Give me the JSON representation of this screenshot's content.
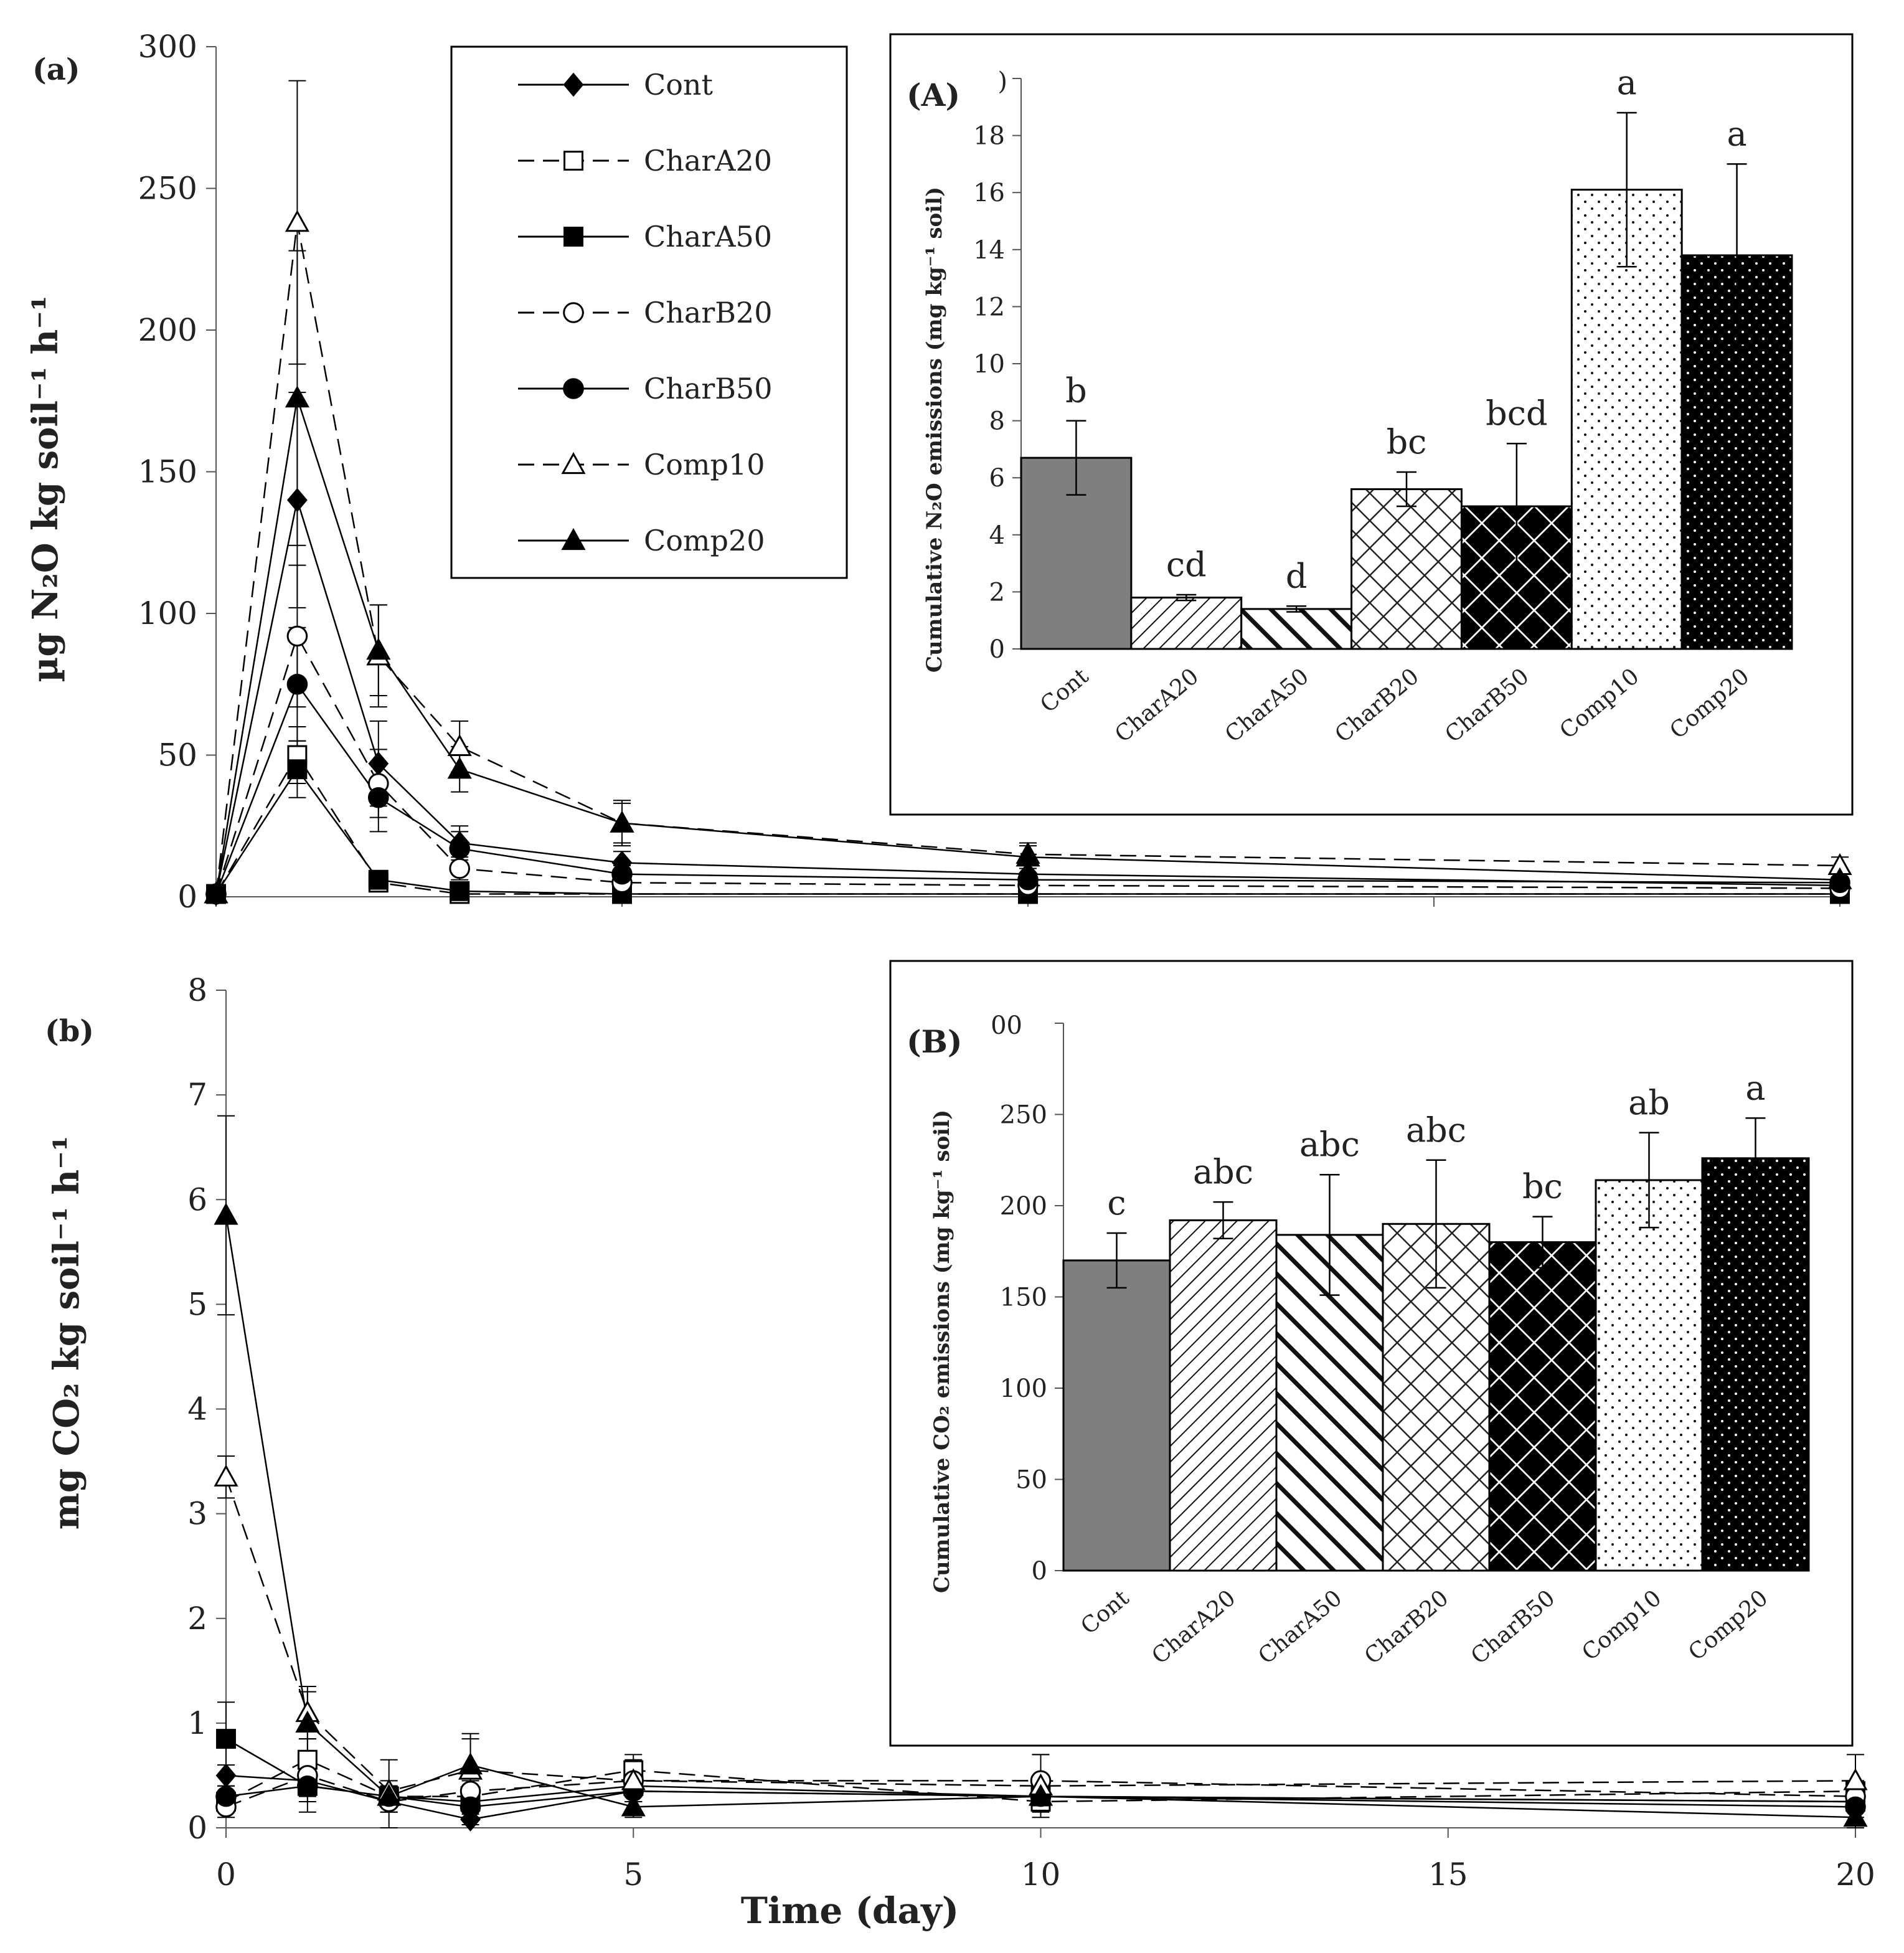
{
  "figure": {
    "x_axis_label": "Time (day)"
  },
  "chart_data": [
    {
      "id": "a",
      "type": "line",
      "panel_label": "(a)",
      "ylabel": "µg N₂O kg soil⁻¹ h⁻¹",
      "xlabel": "Time (day)",
      "xlim": [
        0,
        20
      ],
      "ylim": [
        0,
        300
      ],
      "x_ticks": [
        0,
        5,
        10,
        15,
        20
      ],
      "y_ticks": [
        0,
        50,
        100,
        150,
        200,
        250,
        300
      ],
      "x": [
        0,
        1,
        2,
        3,
        5,
        10,
        20
      ],
      "series": [
        {
          "name": "Cont",
          "marker": "diamond",
          "fill": "filled",
          "dash": "solid",
          "values": [
            1,
            140,
            47,
            19,
            12,
            8,
            4
          ],
          "errors": [
            0,
            38,
            15,
            6,
            4,
            3,
            2
          ]
        },
        {
          "name": "CharA20",
          "marker": "square",
          "fill": "open",
          "dash": "dashed",
          "values": [
            1,
            50,
            5,
            1,
            1,
            1,
            1
          ],
          "errors": [
            0,
            10,
            2,
            1,
            1,
            1,
            1
          ]
        },
        {
          "name": "CharA50",
          "marker": "square",
          "fill": "filled",
          "dash": "solid",
          "values": [
            1,
            45,
            6,
            2,
            1,
            1,
            1
          ],
          "errors": [
            0,
            10,
            2,
            1,
            1,
            1,
            1
          ]
        },
        {
          "name": "CharB20",
          "marker": "circle",
          "fill": "open",
          "dash": "dashed",
          "values": [
            1,
            92,
            40,
            10,
            5,
            4,
            3
          ],
          "errors": [
            0,
            25,
            12,
            4,
            2,
            2,
            2
          ]
        },
        {
          "name": "CharB50",
          "marker": "circle",
          "fill": "filled",
          "dash": "solid",
          "values": [
            1,
            75,
            35,
            17,
            8,
            6,
            5
          ],
          "errors": [
            0,
            20,
            12,
            6,
            3,
            2,
            2
          ]
        },
        {
          "name": "Comp10",
          "marker": "triangle",
          "fill": "open",
          "dash": "dashed",
          "values": [
            1,
            238,
            85,
            53,
            26,
            15,
            11
          ],
          "errors": [
            0,
            50,
            18,
            9,
            8,
            4,
            3
          ]
        },
        {
          "name": "Comp20",
          "marker": "triangle",
          "fill": "filled",
          "dash": "solid",
          "values": [
            1,
            176,
            87,
            45,
            26,
            14,
            6
          ],
          "errors": [
            0,
            52,
            16,
            8,
            7,
            4,
            2
          ]
        }
      ]
    },
    {
      "id": "b",
      "type": "line",
      "panel_label": "(b)",
      "ylabel": "mg CO₂ kg soil⁻¹ h⁻¹",
      "xlabel": "Time (day)",
      "xlim": [
        0,
        20
      ],
      "ylim": [
        0,
        8
      ],
      "x_ticks": [
        0,
        5,
        10,
        15,
        20
      ],
      "y_ticks": [
        0,
        1,
        2,
        3,
        4,
        5,
        6,
        7,
        8
      ],
      "x": [
        0,
        1,
        2,
        3,
        5,
        10,
        20
      ],
      "series": [
        {
          "name": "Cont",
          "marker": "diamond",
          "fill": "filled",
          "dash": "solid",
          "values": [
            0.5,
            0.45,
            0.25,
            0.08,
            0.35,
            0.3,
            0.25
          ],
          "errors": [
            0.1,
            0.12,
            0.1,
            0.05,
            0.1,
            0.1,
            0.1
          ]
        },
        {
          "name": "CharA20",
          "marker": "square",
          "fill": "open",
          "dash": "dashed",
          "values": [
            0.25,
            0.65,
            0.3,
            0.3,
            0.55,
            0.25,
            0.35
          ],
          "errors": [
            0.1,
            0.2,
            0.1,
            0.1,
            0.15,
            0.1,
            0.1
          ]
        },
        {
          "name": "CharA50",
          "marker": "square",
          "fill": "filled",
          "dash": "solid",
          "values": [
            0.85,
            0.4,
            0.3,
            0.25,
            0.4,
            0.3,
            0.25
          ],
          "errors": [
            0.35,
            0.25,
            0.1,
            0.1,
            0.1,
            0.1,
            0.1
          ]
        },
        {
          "name": "CharB20",
          "marker": "circle",
          "fill": "open",
          "dash": "dashed",
          "values": [
            0.2,
            0.5,
            0.25,
            0.35,
            0.45,
            0.45,
            0.3
          ],
          "errors": [
            0.1,
            0.2,
            0.1,
            0.1,
            0.15,
            0.25,
            0.1
          ]
        },
        {
          "name": "CharB50",
          "marker": "circle",
          "fill": "filled",
          "dash": "solid",
          "values": [
            0.3,
            0.4,
            0.3,
            0.2,
            0.35,
            0.3,
            0.2
          ],
          "errors": [
            0.1,
            0.15,
            0.1,
            0.1,
            0.1,
            0.1,
            0.1
          ]
        },
        {
          "name": "Comp10",
          "marker": "triangle",
          "fill": "open",
          "dash": "dashed",
          "values": [
            3.35,
            1.1,
            0.35,
            0.55,
            0.45,
            0.4,
            0.45
          ],
          "errors": [
            0.2,
            0.25,
            0.1,
            0.3,
            0.2,
            0.3,
            0.25
          ]
        },
        {
          "name": "Comp20",
          "marker": "triangle",
          "fill": "filled",
          "dash": "solid",
          "values": [
            5.85,
            1.0,
            0.3,
            0.6,
            0.2,
            0.3,
            0.1
          ],
          "errors": [
            0.95,
            0.3,
            0.35,
            0.3,
            0.1,
            0.1,
            0.1
          ]
        }
      ]
    },
    {
      "id": "A",
      "type": "bar",
      "panel_label": "(A)",
      "ylabel": "Cumulative N₂O emissions (mg kg⁻¹ soil)",
      "ylim": [
        0,
        20
      ],
      "y_ticks": [
        0,
        2,
        4,
        6,
        8,
        10,
        12,
        14,
        16,
        18
      ],
      "top_tick_partial": ")",
      "categories": [
        "Cont",
        "CharA20",
        "CharA50",
        "CharB20",
        "CharB50",
        "Comp10",
        "Comp20"
      ],
      "values": [
        6.7,
        1.8,
        1.4,
        5.6,
        5.0,
        16.1,
        13.8
      ],
      "errors": [
        1.3,
        0.1,
        0.1,
        0.6,
        2.2,
        2.7,
        3.2
      ],
      "letters": [
        "b",
        "cd",
        "d",
        "bc",
        "bcd",
        "a",
        "a"
      ]
    },
    {
      "id": "B",
      "type": "bar",
      "panel_label": "(B)",
      "ylabel": "Cumulative CO₂ emissions (mg kg⁻¹ soil)",
      "ylim": [
        0,
        300
      ],
      "y_ticks": [
        0,
        50,
        100,
        150,
        200,
        250
      ],
      "top_tick_partial": "00",
      "categories": [
        "Cont",
        "CharA20",
        "CharA50",
        "CharB20",
        "CharB50",
        "Comp10",
        "Comp20"
      ],
      "values": [
        170,
        192,
        184,
        190,
        180,
        214,
        226
      ],
      "errors": [
        15,
        10,
        33,
        35,
        14,
        26,
        22
      ],
      "letters": [
        "c",
        "abc",
        "abc",
        "abc",
        "bc",
        "ab",
        "a"
      ]
    }
  ],
  "legend": {
    "entries": [
      "Cont",
      "CharA20",
      "CharA50",
      "CharB20",
      "CharB50",
      "Comp10",
      "Comp20"
    ]
  }
}
